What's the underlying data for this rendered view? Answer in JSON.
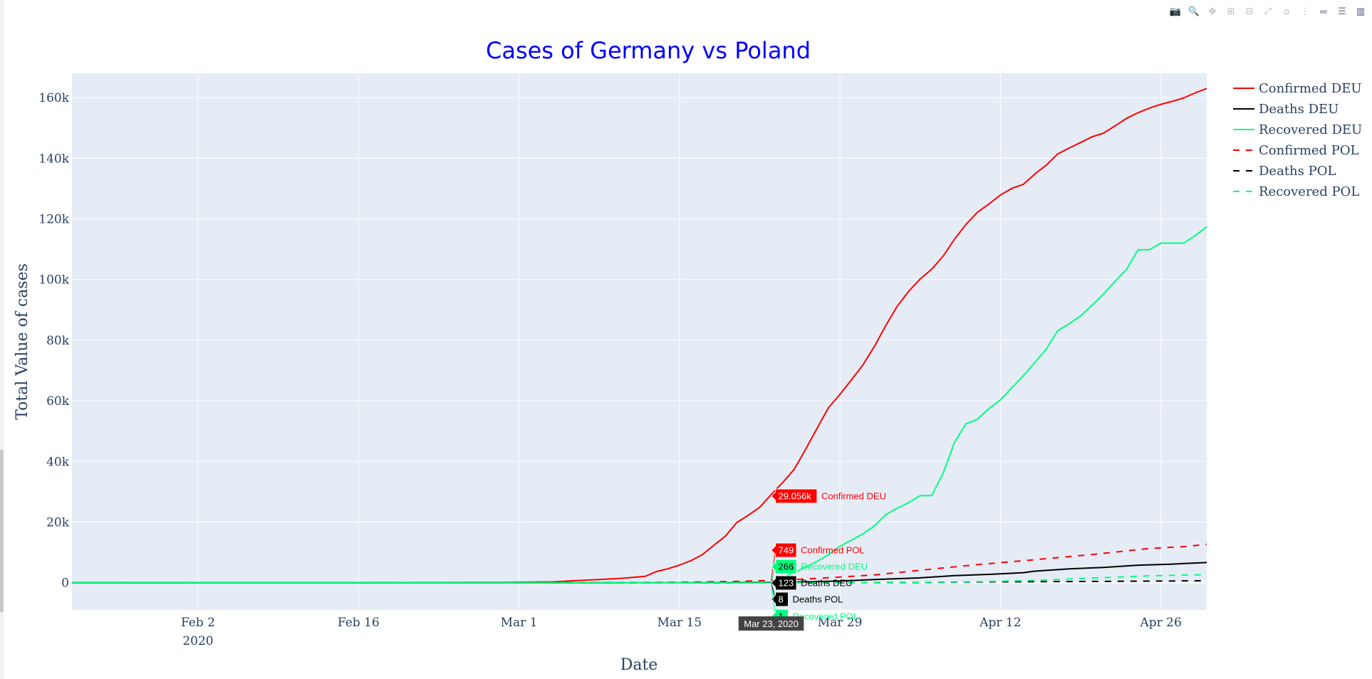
{
  "toolbar": {
    "buttons": [
      {
        "name": "camera-icon",
        "glyph": "📷",
        "label": "Download plot as a png"
      },
      {
        "name": "zoom-icon",
        "glyph": "🔍",
        "label": "Zoom",
        "active": true
      },
      {
        "name": "pan-icon",
        "glyph": "✥",
        "label": "Pan"
      },
      {
        "name": "zoom-in-icon",
        "glyph": "⊞",
        "label": "Zoom in"
      },
      {
        "name": "zoom-out-icon",
        "glyph": "⊟",
        "label": "Zoom out"
      },
      {
        "name": "autoscale-icon",
        "glyph": "⤢",
        "label": "Autoscale"
      },
      {
        "name": "reset-axes-icon",
        "glyph": "⌂",
        "label": "Reset axes"
      },
      {
        "name": "spike-lines-icon",
        "glyph": "⋮",
        "label": "Toggle Spike Lines"
      },
      {
        "name": "hover-closest-icon",
        "glyph": "▬",
        "label": "Show closest data on hover"
      },
      {
        "name": "hover-compare-icon",
        "glyph": "☰",
        "label": "Compare data on hover",
        "active": true
      },
      {
        "name": "plotly-logo-icon",
        "glyph": "▥",
        "label": "Produced with Plotly"
      }
    ]
  },
  "chart_data": {
    "type": "line",
    "title": "Cases of Germany vs Poland",
    "xlabel": "Date",
    "ylabel": "Total Value of cases",
    "x_start": "2020-01-22",
    "x_range": [
      "2020-01-22",
      "2020-04-30"
    ],
    "ylim": [
      -9000,
      168000
    ],
    "x_ticks": [
      {
        "label": "Feb 2",
        "sublabel": "2020",
        "date": "2020-02-02"
      },
      {
        "label": "Feb 16",
        "sublabel": "",
        "date": "2020-02-16"
      },
      {
        "label": "Mar 1",
        "sublabel": "",
        "date": "2020-03-01"
      },
      {
        "label": "Mar 15",
        "sublabel": "",
        "date": "2020-03-15"
      },
      {
        "label": "Mar 29",
        "sublabel": "",
        "date": "2020-03-29"
      },
      {
        "label": "Apr 12",
        "sublabel": "",
        "date": "2020-04-12"
      },
      {
        "label": "Apr 26",
        "sublabel": "",
        "date": "2020-04-26"
      }
    ],
    "y_ticks": [
      {
        "label": "0",
        "value": 0
      },
      {
        "label": "20k",
        "value": 20000
      },
      {
        "label": "40k",
        "value": 40000
      },
      {
        "label": "60k",
        "value": 60000
      },
      {
        "label": "80k",
        "value": 80000
      },
      {
        "label": "100k",
        "value": 100000
      },
      {
        "label": "120k",
        "value": 120000
      },
      {
        "label": "140k",
        "value": 140000
      },
      {
        "label": "160k",
        "value": 160000
      }
    ],
    "grid": true,
    "legend_position": "right",
    "series": [
      {
        "name": "Confirmed DEU",
        "color": "#ff0000",
        "dash": "solid",
        "points": [
          [
            "2020-01-22",
            0
          ],
          [
            "2020-01-27",
            1
          ],
          [
            "2020-02-01",
            8
          ],
          [
            "2020-02-15",
            16
          ],
          [
            "2020-02-29",
            79
          ],
          [
            "2020-03-04",
            262
          ],
          [
            "2020-03-06",
            670
          ],
          [
            "2020-03-08",
            1040
          ],
          [
            "2020-03-10",
            1457
          ],
          [
            "2020-03-12",
            2078
          ],
          [
            "2020-03-13",
            3675
          ],
          [
            "2020-03-14",
            4585
          ],
          [
            "2020-03-15",
            5795
          ],
          [
            "2020-03-16",
            7272
          ],
          [
            "2020-03-17",
            9257
          ],
          [
            "2020-03-18",
            12327
          ],
          [
            "2020-03-19",
            15320
          ],
          [
            "2020-03-20",
            19848
          ],
          [
            "2020-03-21",
            22213
          ],
          [
            "2020-03-22",
            24873
          ],
          [
            "2020-03-23",
            29056
          ],
          [
            "2020-03-24",
            32986
          ],
          [
            "2020-03-25",
            37323
          ],
          [
            "2020-03-26",
            43938
          ],
          [
            "2020-03-27",
            50871
          ],
          [
            "2020-03-28",
            57695
          ],
          [
            "2020-03-29",
            62095
          ],
          [
            "2020-03-30",
            66885
          ],
          [
            "2020-03-31",
            71808
          ],
          [
            "2020-04-01",
            77872
          ],
          [
            "2020-04-02",
            84794
          ],
          [
            "2020-04-03",
            91159
          ],
          [
            "2020-04-04",
            96092
          ],
          [
            "2020-04-05",
            100123
          ],
          [
            "2020-04-06",
            103374
          ],
          [
            "2020-04-07",
            107663
          ],
          [
            "2020-04-08",
            113296
          ],
          [
            "2020-04-09",
            118181
          ],
          [
            "2020-04-10",
            122171
          ],
          [
            "2020-04-11",
            124908
          ],
          [
            "2020-04-12",
            127854
          ],
          [
            "2020-04-13",
            130072
          ],
          [
            "2020-04-14",
            131359
          ],
          [
            "2020-04-15",
            134753
          ],
          [
            "2020-04-16",
            137698
          ],
          [
            "2020-04-17",
            141397
          ],
          [
            "2020-04-18",
            143342
          ],
          [
            "2020-04-19",
            145184
          ],
          [
            "2020-04-20",
            147065
          ],
          [
            "2020-04-21",
            148291
          ],
          [
            "2020-04-22",
            150648
          ],
          [
            "2020-04-23",
            153129
          ],
          [
            "2020-04-24",
            154999
          ],
          [
            "2020-04-25",
            156513
          ],
          [
            "2020-04-26",
            157770
          ],
          [
            "2020-04-27",
            158758
          ],
          [
            "2020-04-28",
            159912
          ],
          [
            "2020-04-29",
            161539
          ],
          [
            "2020-04-30",
            163009
          ]
        ]
      },
      {
        "name": "Deaths DEU",
        "color": "#000000",
        "dash": "solid",
        "points": [
          [
            "2020-01-22",
            0
          ],
          [
            "2020-03-09",
            2
          ],
          [
            "2020-03-15",
            13
          ],
          [
            "2020-03-20",
            67
          ],
          [
            "2020-03-23",
            123
          ],
          [
            "2020-03-26",
            267
          ],
          [
            "2020-03-29",
            533
          ],
          [
            "2020-04-01",
            1017
          ],
          [
            "2020-04-05",
            1584
          ],
          [
            "2020-04-08",
            2349
          ],
          [
            "2020-04-11",
            2736
          ],
          [
            "2020-04-14",
            3294
          ],
          [
            "2020-04-15",
            3804
          ],
          [
            "2020-04-18",
            4538
          ],
          [
            "2020-04-21",
            5033
          ],
          [
            "2020-04-24",
            5760
          ],
          [
            "2020-04-27",
            6126
          ],
          [
            "2020-04-28",
            6314
          ],
          [
            "2020-04-30",
            6623
          ]
        ]
      },
      {
        "name": "Recovered DEU",
        "color": "#00ff7f",
        "dash": "solid",
        "points": [
          [
            "2020-01-22",
            0
          ],
          [
            "2020-02-29",
            16
          ],
          [
            "2020-03-15",
            46
          ],
          [
            "2020-03-20",
            180
          ],
          [
            "2020-03-23",
            266
          ],
          [
            "2020-03-25",
            3243
          ],
          [
            "2020-03-27",
            7000
          ],
          [
            "2020-03-28",
            9211
          ],
          [
            "2020-03-29",
            12000
          ],
          [
            "2020-03-30",
            14000
          ],
          [
            "2020-03-31",
            16100
          ],
          [
            "2020-04-01",
            18700
          ],
          [
            "2020-04-02",
            22440
          ],
          [
            "2020-04-03",
            24575
          ],
          [
            "2020-04-04",
            26400
          ],
          [
            "2020-04-05",
            28700
          ],
          [
            "2020-04-06",
            28700
          ],
          [
            "2020-04-07",
            36081
          ],
          [
            "2020-04-08",
            46300
          ],
          [
            "2020-04-09",
            52407
          ],
          [
            "2020-04-10",
            53913
          ],
          [
            "2020-04-11",
            57400
          ],
          [
            "2020-04-12",
            60300
          ],
          [
            "2020-04-13",
            64300
          ],
          [
            "2020-04-14",
            68200
          ],
          [
            "2020-04-15",
            72600
          ],
          [
            "2020-04-16",
            77000
          ],
          [
            "2020-04-17",
            83114
          ],
          [
            "2020-04-18",
            85400
          ],
          [
            "2020-04-19",
            88000
          ],
          [
            "2020-04-20",
            91500
          ],
          [
            "2020-04-21",
            95200
          ],
          [
            "2020-04-22",
            99400
          ],
          [
            "2020-04-23",
            103300
          ],
          [
            "2020-04-24",
            109800
          ],
          [
            "2020-04-25",
            109800
          ],
          [
            "2020-04-26",
            112000
          ],
          [
            "2020-04-27",
            112000
          ],
          [
            "2020-04-28",
            112000
          ],
          [
            "2020-04-29",
            114500
          ],
          [
            "2020-04-30",
            117400
          ]
        ]
      },
      {
        "name": "Confirmed POL",
        "color": "#ff0000",
        "dash": "dash",
        "points": [
          [
            "2020-03-04",
            0
          ],
          [
            "2020-03-10",
            22
          ],
          [
            "2020-03-15",
            119
          ],
          [
            "2020-03-18",
            287
          ],
          [
            "2020-03-20",
            425
          ],
          [
            "2020-03-23",
            749
          ],
          [
            "2020-03-26",
            1221
          ],
          [
            "2020-03-29",
            1862
          ],
          [
            "2020-04-01",
            2554
          ],
          [
            "2020-04-05",
            4102
          ],
          [
            "2020-04-10",
            5955
          ],
          [
            "2020-04-15",
            7582
          ],
          [
            "2020-04-20",
            9287
          ],
          [
            "2020-04-25",
            11273
          ],
          [
            "2020-04-28",
            11902
          ],
          [
            "2020-04-30",
            12640
          ]
        ]
      },
      {
        "name": "Deaths POL",
        "color": "#000000",
        "dash": "dash",
        "points": [
          [
            "2020-03-04",
            0
          ],
          [
            "2020-03-12",
            2
          ],
          [
            "2020-03-18",
            5
          ],
          [
            "2020-03-23",
            8
          ],
          [
            "2020-03-29",
            22
          ],
          [
            "2020-04-05",
            94
          ],
          [
            "2020-04-12",
            263
          ],
          [
            "2020-04-19",
            380
          ],
          [
            "2020-04-26",
            535
          ],
          [
            "2020-04-30",
            644
          ]
        ]
      },
      {
        "name": "Recovered POL",
        "color": "#00ff7f",
        "dash": "dash",
        "points": [
          [
            "2020-03-04",
            0
          ],
          [
            "2020-03-23",
            1
          ],
          [
            "2020-03-29",
            32
          ],
          [
            "2020-04-05",
            162
          ],
          [
            "2020-04-10",
            318
          ],
          [
            "2020-04-15",
            774
          ],
          [
            "2020-04-20",
            1506
          ],
          [
            "2020-04-25",
            2265
          ],
          [
            "2020-04-30",
            2655
          ]
        ]
      }
    ],
    "hover": {
      "date_label": "Mar 23, 2020",
      "date": "2020-03-23",
      "items": [
        {
          "value_label": "29.056k",
          "name": "Confirmed DEU",
          "value": 29056,
          "bg": "#ff0000",
          "fg": "#ffffff",
          "name_color": "#ff0000"
        },
        {
          "value_label": "749",
          "name": "Confirmed POL",
          "value": 749,
          "bg": "#ff0000",
          "fg": "#ffffff",
          "name_color": "#ff0000"
        },
        {
          "value_label": "266",
          "name": "Recovered DEU",
          "value": 266,
          "bg": "#00ff7f",
          "fg": "#000000",
          "name_color": "#00ff7f"
        },
        {
          "value_label": "123",
          "name": "Deaths DEU",
          "value": 123,
          "bg": "#000000",
          "fg": "#ffffff",
          "name_color": "#000000"
        },
        {
          "value_label": "8",
          "name": "Deaths POL",
          "value": 8,
          "bg": "#000000",
          "fg": "#ffffff",
          "name_color": "#000000"
        },
        {
          "value_label": "1",
          "name": "Recovered POL",
          "value": 1,
          "bg": "#00ff7f",
          "fg": "#000000",
          "name_color": "#00ff7f"
        }
      ]
    }
  }
}
